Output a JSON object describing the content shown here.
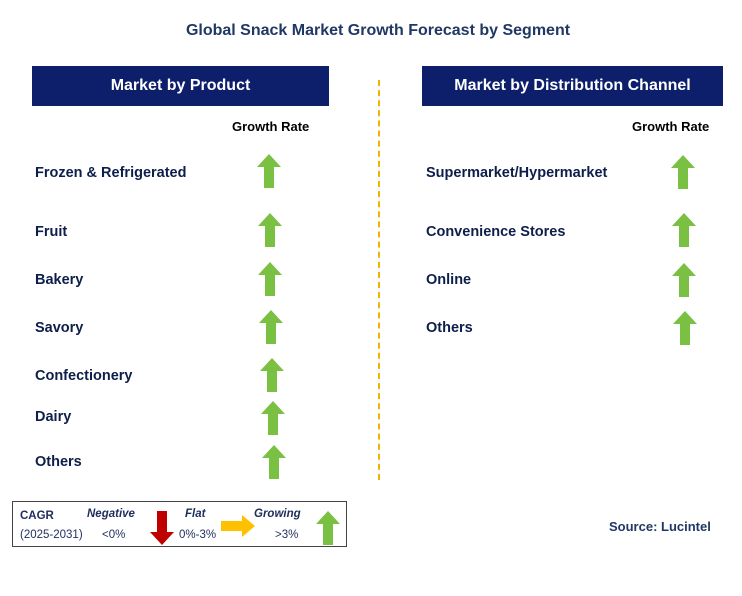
{
  "title": "Global Snack Market Growth Forecast by Segment",
  "left_panel": {
    "header": "Market by Product",
    "rate_header": "Growth Rate",
    "items": [
      {
        "label": "Frozen & Refrigerated",
        "trend": "growing"
      },
      {
        "label": "Fruit",
        "trend": "growing"
      },
      {
        "label": "Bakery",
        "trend": "growing"
      },
      {
        "label": "Savory",
        "trend": "growing"
      },
      {
        "label": "Confectionery",
        "trend": "growing"
      },
      {
        "label": "Dairy",
        "trend": "growing"
      },
      {
        "label": "Others",
        "trend": "growing"
      }
    ]
  },
  "right_panel": {
    "header": "Market by Distribution Channel",
    "rate_header": "Growth Rate",
    "items": [
      {
        "label": "Supermarket/Hypermarket",
        "trend": "growing"
      },
      {
        "label": "Convenience Stores",
        "trend": "growing"
      },
      {
        "label": "Online",
        "trend": "growing"
      },
      {
        "label": "Others",
        "trend": "growing"
      }
    ]
  },
  "legend": {
    "cagr_label": "CAGR",
    "period": "(2025-2031)",
    "negative_label": "Negative",
    "negative_range": "<0%",
    "flat_label": "Flat",
    "flat_range": "0%-3%",
    "growing_label": "Growing",
    "growing_range": ">3%"
  },
  "source": "Source: Lucintel",
  "colors": {
    "header_bg": "#0d1e6b",
    "title": "#1f3864",
    "growing": "#7ac143",
    "negative": "#c00000",
    "flat": "#ffc000",
    "divider": "#f0b400"
  }
}
